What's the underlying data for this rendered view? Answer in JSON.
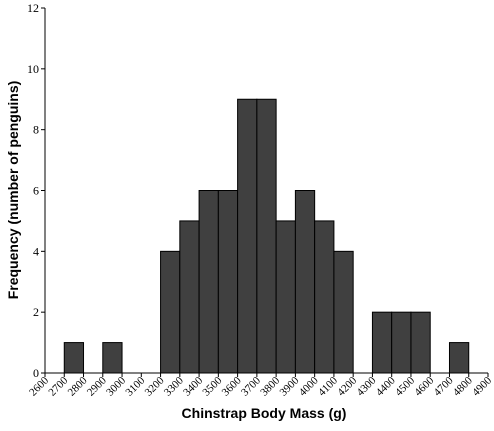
{
  "chart_data": {
    "type": "bar",
    "title": "",
    "xlabel": "Chinstrap Body Mass (g)",
    "ylabel": "Frequency (number of penguins)",
    "bar_color": "#404040",
    "ylim": [
      0,
      12
    ],
    "yticks": [
      "0",
      "2",
      "4",
      "6",
      "8",
      "10",
      "12"
    ],
    "xticks": [
      "2600",
      "2700",
      "2800",
      "2900",
      "3000",
      "3100",
      "3200",
      "3300",
      "3400",
      "3500",
      "3600",
      "3700",
      "3800",
      "3900",
      "4000",
      "4100",
      "4200",
      "4300",
      "4400",
      "4500",
      "4600",
      "4700",
      "4800",
      "4900"
    ],
    "bins": [
      {
        "x0": 2700,
        "x1": 2800,
        "count": 1
      },
      {
        "x0": 2900,
        "x1": 3000,
        "count": 1
      },
      {
        "x0": 3200,
        "x1": 3300,
        "count": 4
      },
      {
        "x0": 3300,
        "x1": 3400,
        "count": 5
      },
      {
        "x0": 3400,
        "x1": 3500,
        "count": 6
      },
      {
        "x0": 3500,
        "x1": 3600,
        "count": 6
      },
      {
        "x0": 3600,
        "x1": 3700,
        "count": 9
      },
      {
        "x0": 3700,
        "x1": 3800,
        "count": 9
      },
      {
        "x0": 3800,
        "x1": 3900,
        "count": 5
      },
      {
        "x0": 3900,
        "x1": 4000,
        "count": 6
      },
      {
        "x0": 4000,
        "x1": 4100,
        "count": 5
      },
      {
        "x0": 4100,
        "x1": 4200,
        "count": 4
      },
      {
        "x0": 4300,
        "x1": 4400,
        "count": 2
      },
      {
        "x0": 4400,
        "x1": 4500,
        "count": 2
      },
      {
        "x0": 4500,
        "x1": 4600,
        "count": 2
      },
      {
        "x0": 4700,
        "x1": 4800,
        "count": 1
      }
    ]
  }
}
